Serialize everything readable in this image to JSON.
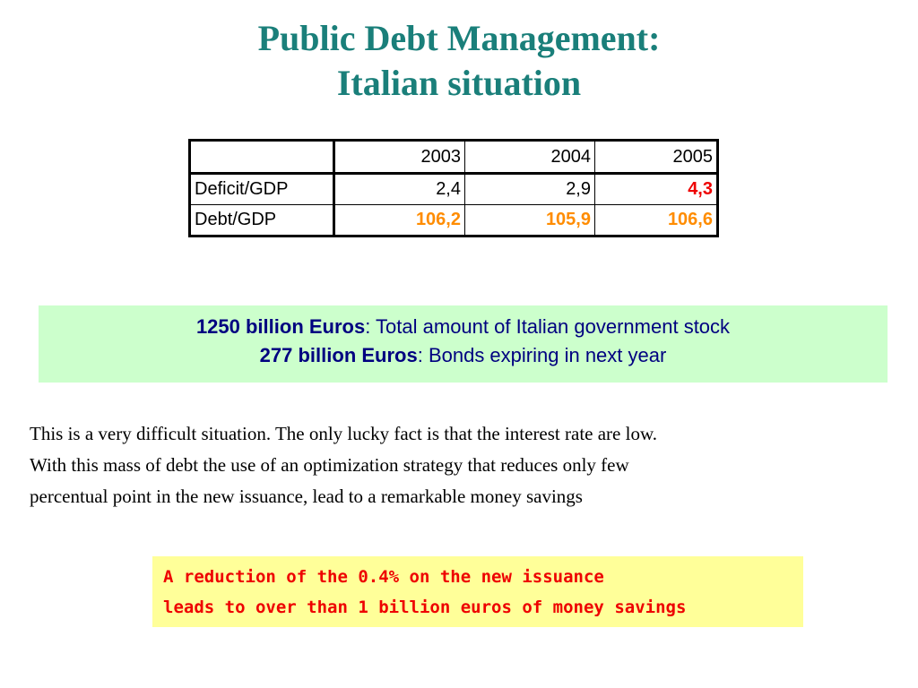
{
  "title": {
    "line1": "Public Debt Management:",
    "line2": "Italian situation"
  },
  "table": {
    "headers": [
      "",
      "2003",
      "2004",
      "2005"
    ],
    "rows": [
      {
        "label": "Deficit/GDP",
        "values": [
          "2,4",
          "2,9",
          "4,3"
        ]
      },
      {
        "label": "Debt/GDP",
        "values": [
          "106,2",
          "105,9",
          "106,6"
        ]
      }
    ]
  },
  "highlight": {
    "line1_bold": "1250 billion Euros",
    "line1_rest": ": Total amount of Italian government stock",
    "line2_bold": "277 billion Euros",
    "line2_rest": ": Bonds expiring in next year"
  },
  "paragraph": {
    "line1": "This is a very difficult situation. The only lucky fact is that the interest rate are low.",
    "line2": "With this mass of debt the use of an optimization strategy that reduces only few",
    "line3": "percentual point in the new issuance, lead to a remarkable money savings"
  },
  "callout": {
    "line1": "A reduction of the 0.4% on the new issuance",
    "line2": "leads to over than 1 billion euros of money savings"
  },
  "colors": {
    "title": "#1a7f7a",
    "highlight_bg": "#ccffcc",
    "highlight_text": "#000080",
    "callout_bg": "#ffff99",
    "callout_text": "#ee0000",
    "value_orange": "#ff8c00",
    "value_red": "#ee0000"
  }
}
